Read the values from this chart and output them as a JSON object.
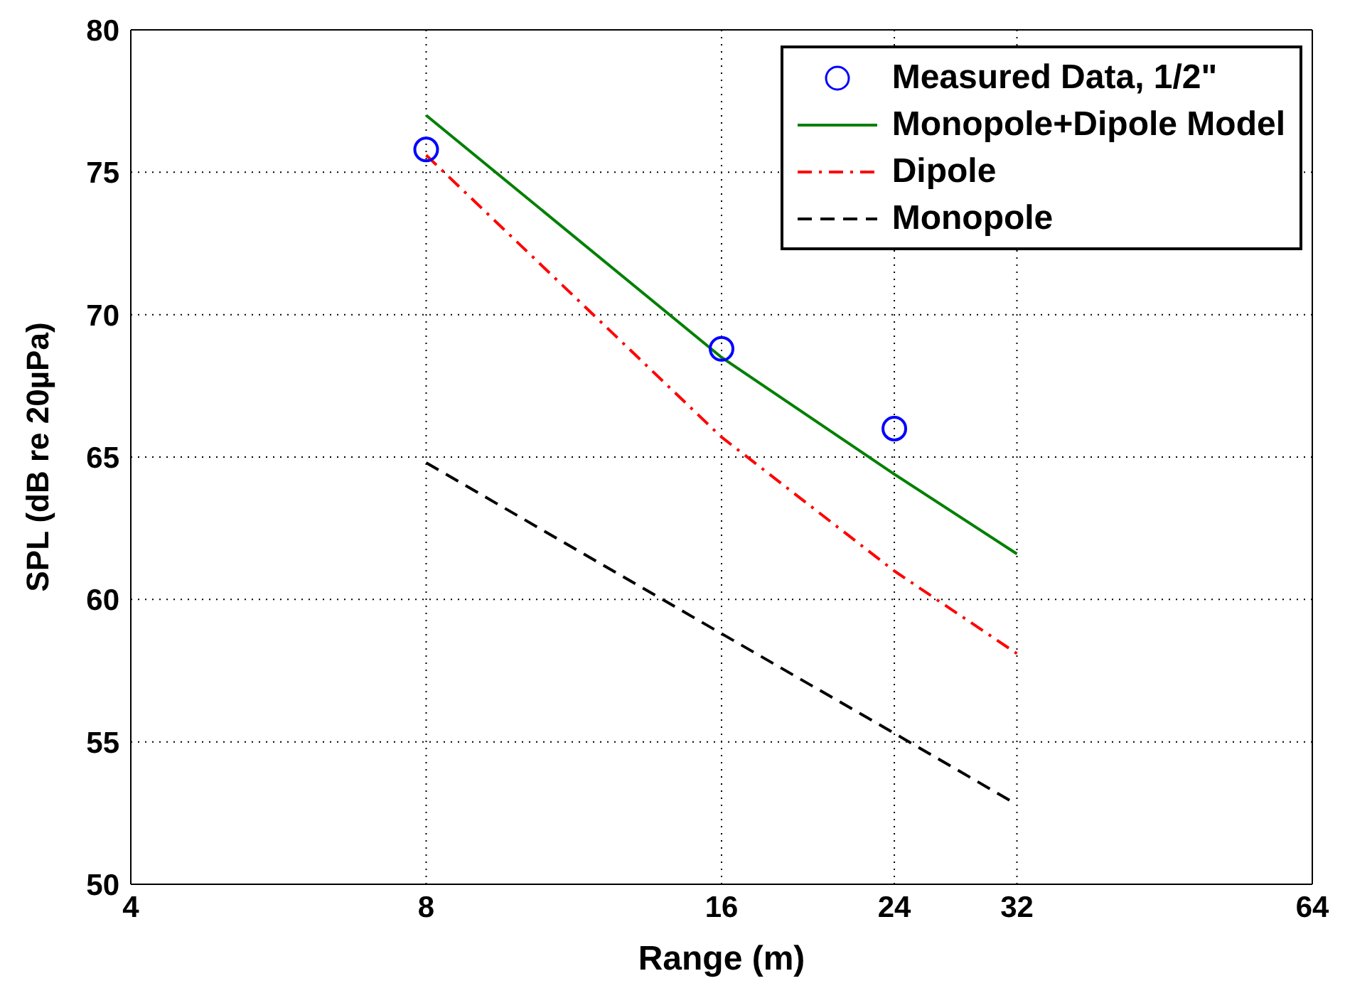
{
  "chart_data": {
    "type": "line",
    "xlabel": "Range (m)",
    "ylabel": "SPL (dB re 20µPa)",
    "log": "x",
    "xlim": [
      4,
      64
    ],
    "xticks": [
      4,
      8,
      16,
      24,
      32,
      64
    ],
    "ylim": [
      50,
      80
    ],
    "yticks": [
      50,
      55,
      60,
      65,
      70,
      75,
      80
    ],
    "grid": true,
    "legend": "top right",
    "series": [
      {
        "name": "Measured Data, 1/2\"",
        "type": "scatter",
        "marker": "circle",
        "color": "#0000ff",
        "x": [
          8,
          16,
          24
        ],
        "values": [
          75.8,
          68.8,
          66.0
        ]
      },
      {
        "name": "Monopole+Dipole Model",
        "line_style": "solid",
        "color": "#008000",
        "x": [
          8,
          16,
          24,
          32
        ],
        "values": [
          77.0,
          68.5,
          64.4,
          61.6
        ]
      },
      {
        "name": "Dipole",
        "line_style": "dashdot",
        "color": "#ff0000",
        "x": [
          8,
          16,
          24,
          32
        ],
        "values": [
          75.6,
          65.7,
          61.0,
          58.1
        ]
      },
      {
        "name": "Monopole",
        "line_style": "dashed",
        "color": "#000000",
        "x": [
          8,
          16,
          24,
          32
        ],
        "values": [
          64.8,
          58.8,
          55.3,
          52.8
        ]
      }
    ]
  }
}
